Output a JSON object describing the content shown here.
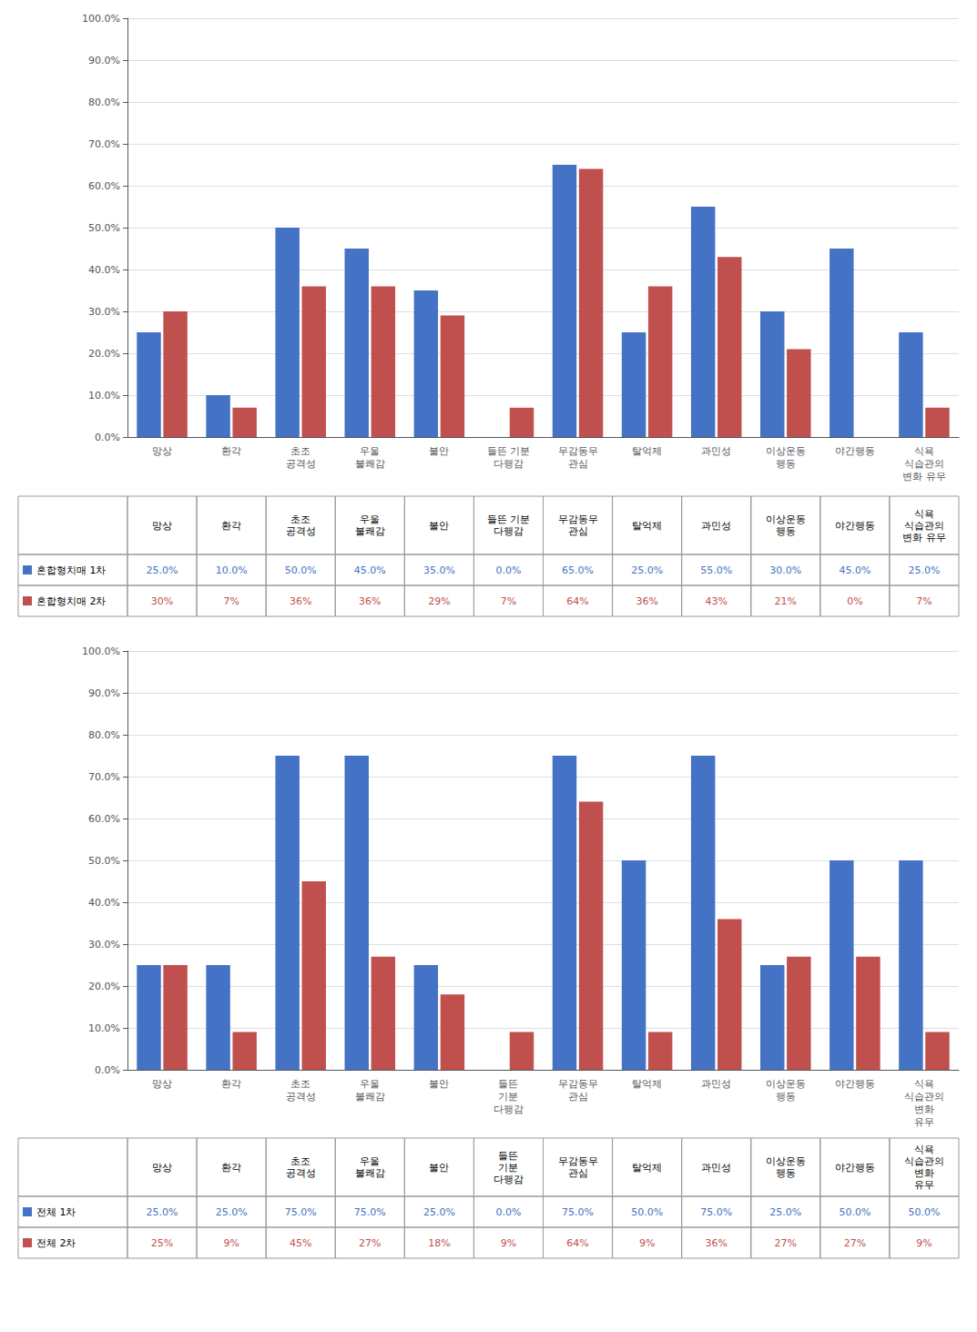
{
  "chart_data": [
    {
      "type": "bar",
      "categories": [
        "망상",
        "환각",
        "초조\n공격성",
        "우울\n불쾌감",
        "불안",
        "들뜬 기분\n다행감",
        "무감동무\n관심",
        "탈억제",
        "과민성",
        "이상운동\n행동",
        "야간행동",
        "식욕\n식습관의\n변화 유무"
      ],
      "series": [
        {
          "name": "혼합형치매 1차",
          "color": "#4472C4",
          "values": [
            0.25,
            0.1,
            0.5,
            0.45,
            0.35,
            0.0,
            0.65,
            0.25,
            0.55,
            0.3,
            0.45,
            0.25
          ],
          "value_labels": [
            "25.0%",
            "10.0%",
            "50.0%",
            "45.0%",
            "35.0%",
            "0.0%",
            "65.0%",
            "25.0%",
            "55.0%",
            "30.0%",
            "45.0%",
            "25.0%"
          ]
        },
        {
          "name": "혼합형치매 2차",
          "color": "#C0504D",
          "values": [
            0.3,
            0.07,
            0.36,
            0.36,
            0.29,
            0.07,
            0.64,
            0.36,
            0.43,
            0.21,
            0.0,
            0.07
          ],
          "value_labels": [
            "30%",
            "7%",
            "36%",
            "36%",
            "29%",
            "7%",
            "64%",
            "36%",
            "43%",
            "21%",
            "0%",
            "7%"
          ]
        }
      ],
      "ylim": [
        0.0,
        1.0
      ],
      "yticks": [
        {
          "value": 0.0,
          "label": "0.0%"
        },
        {
          "value": 0.1,
          "label": "10.0%"
        },
        {
          "value": 0.2,
          "label": "20.0%"
        },
        {
          "value": 0.3,
          "label": "30.0%"
        },
        {
          "value": 0.4,
          "label": "40.0%"
        },
        {
          "value": 0.5,
          "label": "50.0%"
        },
        {
          "value": 0.6,
          "label": "60.0%"
        },
        {
          "value": 0.7,
          "label": "70.0%"
        },
        {
          "value": 0.8,
          "label": "80.0%"
        },
        {
          "value": 0.9,
          "label": "90.0%"
        },
        {
          "value": 1.0,
          "label": "100.0%"
        }
      ],
      "grid": true
    },
    {
      "type": "bar",
      "categories": [
        "망상",
        "환각",
        "초조\n공격성",
        "우울\n불쾌감",
        "불안",
        "들뜬\n기분\n다행감",
        "무감동무\n관심",
        "탈억제",
        "과민성",
        "이상운동\n행동",
        "야간행동",
        "식욕\n식습관의\n변화\n유무"
      ],
      "series": [
        {
          "name": "전체 1차",
          "color": "#4472C4",
          "values": [
            0.25,
            0.25,
            0.75,
            0.75,
            0.25,
            0.0,
            0.75,
            0.5,
            0.75,
            0.25,
            0.5,
            0.5
          ],
          "value_labels": [
            "25.0%",
            "25.0%",
            "75.0%",
            "75.0%",
            "25.0%",
            "0.0%",
            "75.0%",
            "50.0%",
            "75.0%",
            "25.0%",
            "50.0%",
            "50.0%"
          ]
        },
        {
          "name": "전체 2차",
          "color": "#C0504D",
          "values": [
            0.25,
            0.09,
            0.45,
            0.27,
            0.18,
            0.09,
            0.64,
            0.09,
            0.36,
            0.27,
            0.27,
            0.09
          ],
          "value_labels": [
            "25%",
            "9%",
            "45%",
            "27%",
            "18%",
            "9%",
            "64%",
            "9%",
            "36%",
            "27%",
            "27%",
            "9%"
          ]
        }
      ],
      "ylim": [
        0.0,
        1.0
      ],
      "yticks": [
        {
          "value": 0.0,
          "label": "0.0%"
        },
        {
          "value": 0.1,
          "label": "10.0%"
        },
        {
          "value": 0.2,
          "label": "20.0%"
        },
        {
          "value": 0.3,
          "label": "30.0%"
        },
        {
          "value": 0.4,
          "label": "40.0%"
        },
        {
          "value": 0.5,
          "label": "50.0%"
        },
        {
          "value": 0.6,
          "label": "60.0%"
        },
        {
          "value": 0.7,
          "label": "70.0%"
        },
        {
          "value": 0.8,
          "label": "80.0%"
        },
        {
          "value": 0.9,
          "label": "90.0%"
        },
        {
          "value": 1.0,
          "label": "100.0%"
        }
      ],
      "grid": true
    }
  ]
}
